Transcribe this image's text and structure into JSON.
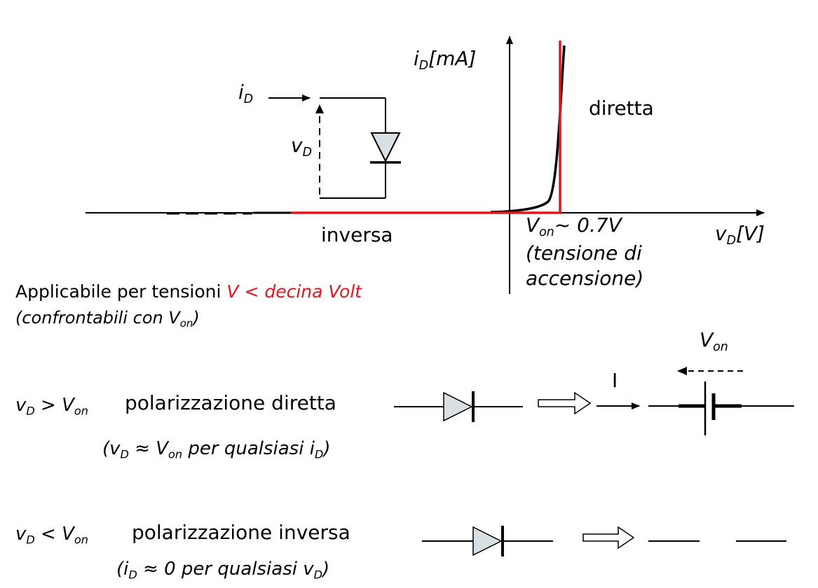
{
  "graph": {
    "y_axis": {
      "var": "i",
      "sub": "D",
      "unit": "[mA]"
    },
    "x_axis": {
      "var": "v",
      "sub": "D",
      "unit": "[V]"
    },
    "label_forward": "diretta",
    "label_reverse": "inversa",
    "von_symbol": "V",
    "von_sub": "on",
    "von_value": "~ 0.7V",
    "von_note_line1": "(tensione di",
    "von_note_line2": "accensione)",
    "circuit": {
      "current_var": "i",
      "current_sub": "D",
      "voltage_var": "v",
      "voltage_sub": "D"
    },
    "colors": {
      "ideal_curve": "#e8141c",
      "real_curve": "#000000"
    }
  },
  "applicability": {
    "prefix": "Applicabile per tensioni ",
    "condition": "V < decina Volt",
    "line2_prefix": "(confrontabili con V",
    "line2_sub": "on",
    "line2_suffix": ")"
  },
  "forward": {
    "cond_var": "v",
    "cond_sub": "D",
    "cond_op": " > V",
    "cond_sub2": "on",
    "label": "polarizzazione diretta",
    "note_open": "(v",
    "note_sub1": "D",
    "note_mid1": " ≈ V",
    "note_sub2": "on",
    "note_mid2": " per qualsiasi i",
    "note_sub3": "D",
    "note_close": ")",
    "current_label": "I",
    "source_symbol": "V",
    "source_sub": "on"
  },
  "reverse": {
    "cond_var": "v",
    "cond_sub": "D",
    "cond_op": " < V",
    "cond_sub2": "on",
    "label": "polarizzazione inversa",
    "note_open": "(i",
    "note_sub1": "D",
    "note_mid1": " ≈  0 per qualsiasi v",
    "note_sub2": "D",
    "note_close": ")"
  }
}
